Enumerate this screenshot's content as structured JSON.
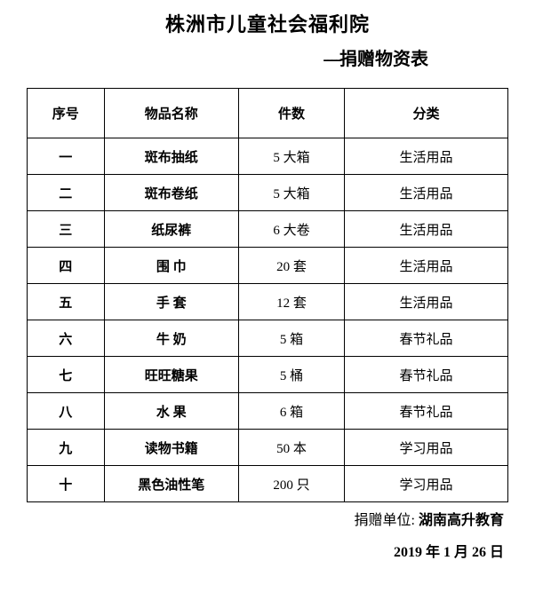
{
  "title": "株洲市儿童社会福利院",
  "subtitle_dashes": "----",
  "subtitle_text": "捐赠物资表",
  "headers": {
    "seq": "序号",
    "name": "物品名称",
    "qty": "件数",
    "cat": "分类"
  },
  "rows": [
    {
      "seq": "一",
      "name": "斑布抽纸",
      "qty": "5 大箱",
      "cat": "生活用品"
    },
    {
      "seq": "二",
      "name": "斑布卷纸",
      "qty": "5 大箱",
      "cat": "生活用品"
    },
    {
      "seq": "三",
      "name": "纸尿裤",
      "qty": "6 大卷",
      "cat": "生活用品"
    },
    {
      "seq": "四",
      "name": "围 巾",
      "qty": "20 套",
      "cat": "生活用品"
    },
    {
      "seq": "五",
      "name": "手 套",
      "qty": "12 套",
      "cat": "生活用品"
    },
    {
      "seq": "六",
      "name": "牛 奶",
      "qty": "5 箱",
      "cat": "春节礼品"
    },
    {
      "seq": "七",
      "name": "旺旺糖果",
      "qty": "5 桶",
      "cat": "春节礼品"
    },
    {
      "seq": "八",
      "name": "水 果",
      "qty": "6 箱",
      "cat": "春节礼品"
    },
    {
      "seq": "九",
      "name": "读物书籍",
      "qty": "50 本",
      "cat": "学习用品"
    },
    {
      "seq": "十",
      "name": "黑色油性笔",
      "qty": "200 只",
      "cat": "学习用品"
    }
  ],
  "donor_label": "捐赠单位: ",
  "donor_value": "湖南高升教育",
  "date": "2019 年 1 月 26 日",
  "colors": {
    "text": "#000000",
    "background": "#ffffff",
    "border": "#000000"
  },
  "typography": {
    "title_fontsize": 22,
    "subtitle_fontsize": 20,
    "table_fontsize": 15,
    "footer_fontsize": 16
  }
}
